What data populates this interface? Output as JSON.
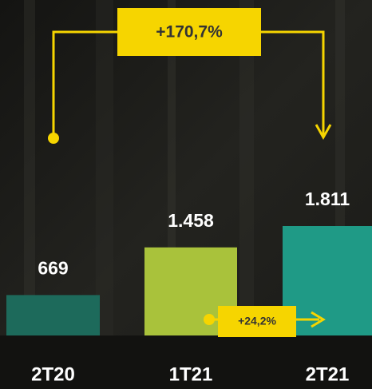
{
  "chart_data": {
    "type": "bar",
    "categories": [
      "2T20",
      "1T21",
      "2T21"
    ],
    "values": [
      669,
      1458,
      1811
    ],
    "value_labels": [
      "669",
      "1.458",
      "1.811"
    ],
    "colors": [
      "#1d6a5b",
      "#a9c23b",
      "#1f9a86"
    ],
    "annotations": [
      "+170,7%",
      "+24,2%"
    ],
    "annotation_color": "#f6d500"
  }
}
